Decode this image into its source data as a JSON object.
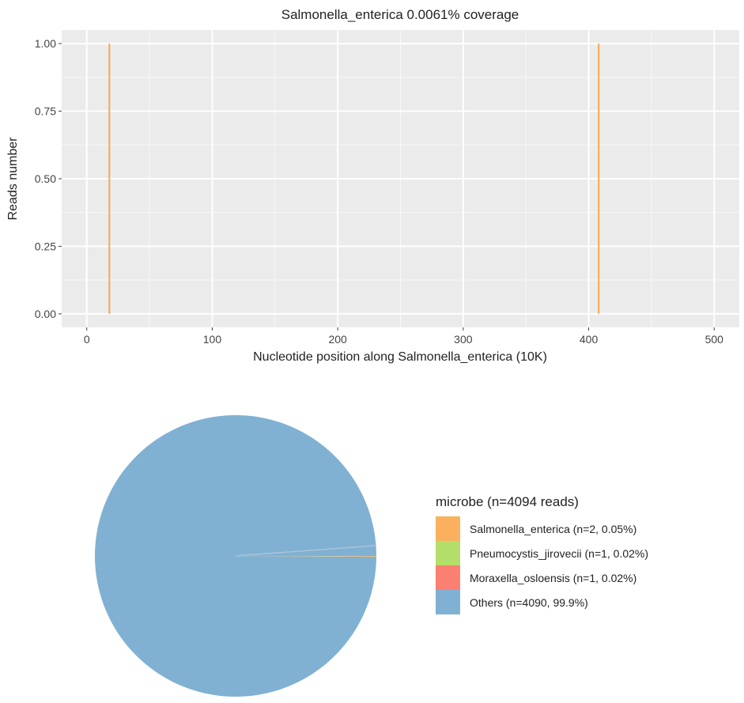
{
  "chart_data": [
    {
      "type": "bar",
      "title": "Salmonella_enterica 0.0061% coverage",
      "xlabel": "Nucleotide position along Salmonella_enterica (10K)",
      "ylabel": "Reads number",
      "xlim": [
        -20,
        520
      ],
      "ylim": [
        -0.05,
        1.05
      ],
      "x_ticks": [
        0,
        100,
        200,
        300,
        400,
        500
      ],
      "y_ticks": [
        0.0,
        0.25,
        0.5,
        0.75,
        1.0
      ],
      "x_tick_labels": [
        "0",
        "100",
        "200",
        "300",
        "400",
        "500"
      ],
      "y_tick_labels": [
        "0.00",
        "0.25",
        "0.50",
        "0.75",
        "1.00"
      ],
      "grid": true,
      "color": "#f5a94b",
      "panel_color": "#ebebeb",
      "points": [
        {
          "x": 18,
          "y": 1
        },
        {
          "x": 408,
          "y": 1
        }
      ]
    },
    {
      "type": "pie",
      "legend_title": "microbe (n=4094 reads)",
      "legend_position": "right",
      "slices": [
        {
          "label": "Salmonella_enterica (n=2, 0.05%)",
          "value": 2,
          "color": "#fbb05e"
        },
        {
          "label": "Pneumocystis_jirovecii (n=1, 0.02%)",
          "value": 1,
          "color": "#b3de69"
        },
        {
          "label": "Moraxella_osloensis (n=1, 0.02%)",
          "value": 1,
          "color": "#fb8072"
        },
        {
          "label": "Others (n=4090, 99.9%)",
          "value": 4090,
          "color": "#80b1d3"
        }
      ]
    }
  ]
}
